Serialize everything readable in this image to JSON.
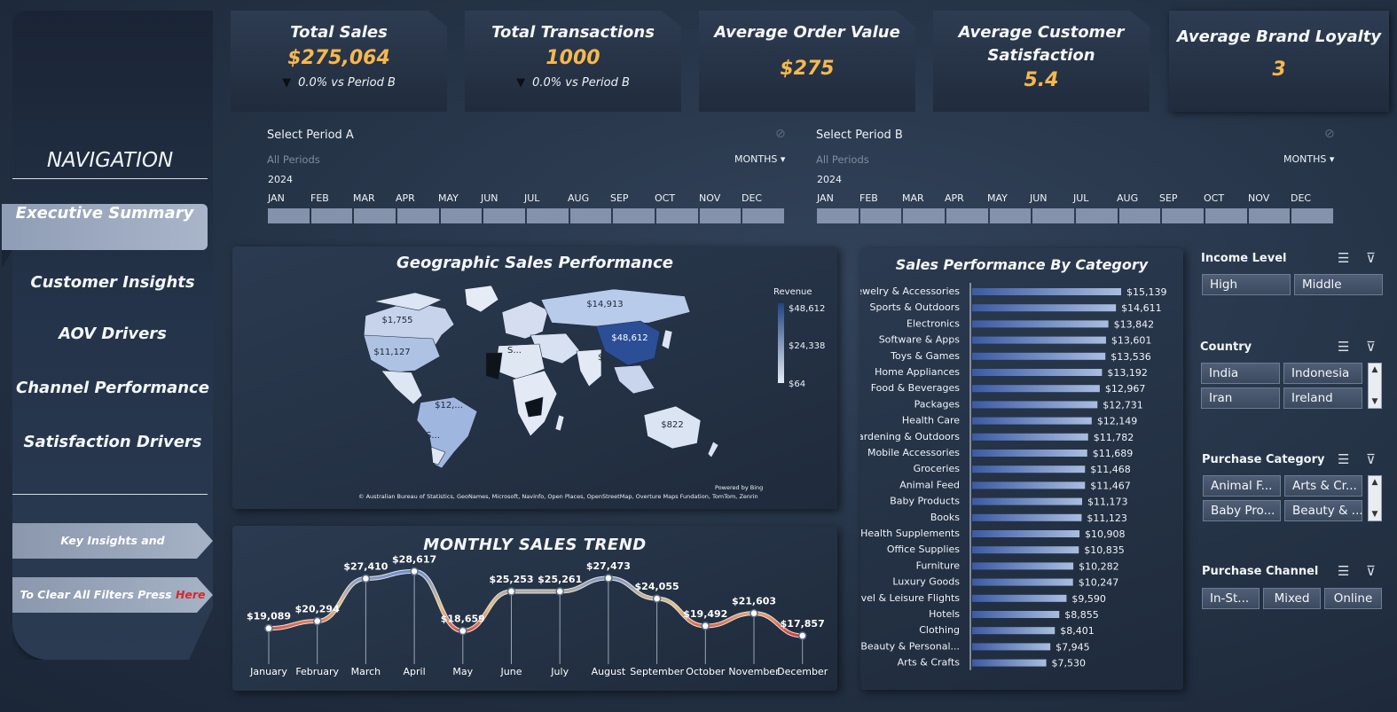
{
  "navigation": {
    "title": "NAVIGATION",
    "items": [
      {
        "label": "Executive Summary",
        "active": true
      },
      {
        "label": "Customer Insights"
      },
      {
        "label": "AOV Drivers"
      },
      {
        "label": "Channel Performance"
      },
      {
        "label": "Satisfaction Drivers"
      }
    ],
    "insights_button": "Key Insights and Recommendations",
    "clear_button_text": "To Clear All Filters Press ",
    "clear_button_link": "Here"
  },
  "kpis": [
    {
      "title": "Total Sales",
      "value": "$275,064",
      "delta": "0.0% vs Period B"
    },
    {
      "title": "Total Transactions",
      "value": "1000",
      "delta": "0.0% vs Period B"
    },
    {
      "title": "Average Order Value",
      "value": "$275"
    },
    {
      "title_line1": "Average Customer",
      "title_line2": "Satisfaction",
      "value": "5.4"
    },
    {
      "title": "Average Brand Loyalty",
      "value": "3"
    }
  ],
  "timelines": [
    {
      "title": "Select Period A",
      "subtitle": "All Periods",
      "granularity": "MONTHS",
      "year": "2024",
      "months": [
        "JAN",
        "FEB",
        "MAR",
        "APR",
        "MAY",
        "JUN",
        "JUL",
        "AUG",
        "SEP",
        "OCT",
        "NOV",
        "DEC"
      ]
    },
    {
      "title": "Select Period B",
      "subtitle": "All Periods",
      "granularity": "MONTHS",
      "year": "2024",
      "months": [
        "JAN",
        "FEB",
        "MAR",
        "APR",
        "MAY",
        "JUN",
        "JUL",
        "AUG",
        "SEP",
        "OCT",
        "NOV",
        "DEC"
      ]
    }
  ],
  "map": {
    "title": "Geographic Sales Performance",
    "legend_title": "Revenue",
    "legend_values": [
      "$48,612",
      "$24,338",
      "$64"
    ],
    "labels": [
      "$1,755",
      "$11,127",
      "$14,913",
      "$48,612",
      "$12,...",
      "S...",
      "S...",
      "$...",
      "$822"
    ],
    "attribution": "© Australian Bureau of Statistics, GeoNames, Microsoft, Navinfo, Open Places, OpenStreetMap, Overture Maps Fundation, TomTom, Zenrin",
    "powered_by": "Powered by Bing"
  },
  "slicers": [
    {
      "title": "Income Level",
      "options": [
        "High",
        "Middle"
      ]
    },
    {
      "title": "Country",
      "options": [
        "India",
        "Indonesia",
        "Iran",
        "Ireland"
      ]
    },
    {
      "title": "Purchase Category",
      "options": [
        "Animal F...",
        "Arts & Cr...",
        "Baby Pro...",
        "Beauty & ..."
      ]
    },
    {
      "title": "Purchase Channel",
      "options": [
        "In-St...",
        "Mixed",
        "Online"
      ]
    }
  ],
  "chart_data": [
    {
      "type": "line",
      "title": "MONTHLY SALES TREND",
      "categories": [
        "January",
        "February",
        "March",
        "April",
        "May",
        "June",
        "July",
        "August",
        "September",
        "October",
        "November",
        "December"
      ],
      "values": [
        19089,
        20294,
        27410,
        28617,
        18659,
        25253,
        25261,
        27473,
        24055,
        19492,
        21603,
        17857
      ],
      "labels": [
        "$19,089",
        "$20,294",
        "$27,410",
        "$28,617",
        "$18,659",
        "$25,253",
        "$25,261",
        "$27,473",
        "$24,055",
        "$19,492",
        "$21,603",
        "$17,857"
      ],
      "colors": {
        "high": "#6b8fd6",
        "mid": "#e8c27a",
        "low": "#d83b3b"
      }
    },
    {
      "type": "bar",
      "orientation": "horizontal",
      "title": "Sales Performance By Category",
      "categories": [
        "Jewelry & Accessories",
        "Sports & Outdoors",
        "Electronics",
        "Software & Apps",
        "Toys & Games",
        "Home Appliances",
        "Food & Beverages",
        "Packages",
        "Health Care",
        "Gardening & Outdoors",
        "Mobile Accessories",
        "Groceries",
        "Animal Feed",
        "Baby Products",
        "Books",
        "Health Supplements",
        "Office Supplies",
        "Furniture",
        "Luxury Goods",
        "Travel & Leisure Flights",
        "Hotels",
        "Clothing",
        "Beauty & Personal...",
        "Arts & Crafts"
      ],
      "values": [
        15139,
        14611,
        13842,
        13601,
        13536,
        13192,
        12967,
        12731,
        12149,
        11782,
        11689,
        11468,
        11467,
        11173,
        11123,
        10908,
        10835,
        10282,
        10247,
        9590,
        8855,
        8401,
        7945,
        7530
      ],
      "labels": [
        "$15,139",
        "$14,611",
        "$13,842",
        "$13,601",
        "$13,536",
        "$13,192",
        "$12,967",
        "$12,731",
        "$12,149",
        "$11,782",
        "$11,689",
        "$11,468",
        "$11,467",
        "$11,173",
        "$11,123",
        "$10,908",
        "$10,835",
        "$10,282",
        "$10,247",
        "$9,590",
        "$8,855",
        "$8,401",
        "$7,945",
        "$7,530"
      ],
      "bar_color": "#a9bde0"
    }
  ]
}
